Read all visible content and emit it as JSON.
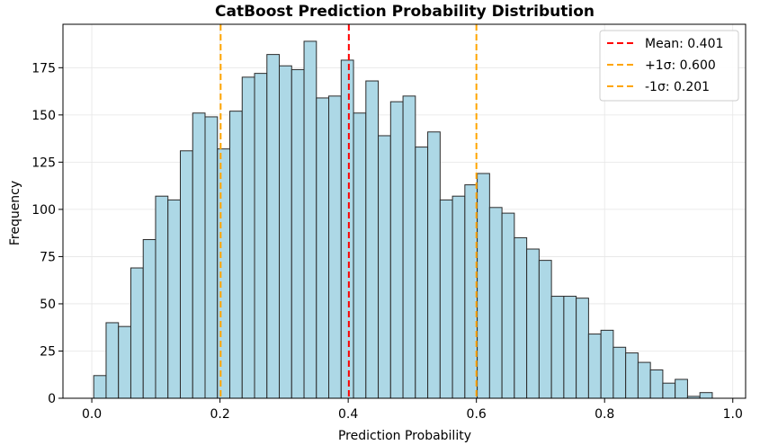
{
  "chart_data": {
    "type": "bar",
    "title": "CatBoost Prediction Probability Distribution",
    "xlabel": "Prediction Probability",
    "ylabel": "Frequency",
    "xlim": [
      -0.045,
      1.02
    ],
    "ylim": [
      0,
      198
    ],
    "xticks": [
      "0.0",
      "0.2",
      "0.4",
      "0.6",
      "0.8",
      "1.0"
    ],
    "yticks": [
      "0",
      "25",
      "50",
      "75",
      "100",
      "125",
      "150",
      "175"
    ],
    "grid": true,
    "legend_position": "top-right",
    "bar_color": "#add8e6",
    "bin_start": 0.003,
    "bin_width": 0.0193,
    "values": [
      12,
      40,
      38,
      69,
      84,
      107,
      105,
      131,
      151,
      149,
      132,
      152,
      170,
      172,
      182,
      176,
      174,
      189,
      159,
      160,
      179,
      151,
      168,
      139,
      157,
      160,
      133,
      141,
      105,
      107,
      113,
      119,
      101,
      98,
      85,
      79,
      73,
      54,
      54,
      53,
      34,
      36,
      27,
      24,
      19,
      15,
      8,
      10,
      1,
      3
    ],
    "lines": [
      {
        "label": "Mean: 0.401",
        "x": 0.401,
        "color": "#ff0000"
      },
      {
        "label": "+1σ: 0.600",
        "x": 0.6,
        "color": "#ffa500"
      },
      {
        "label": "-1σ: 0.201",
        "x": 0.201,
        "color": "#ffa500"
      }
    ]
  }
}
